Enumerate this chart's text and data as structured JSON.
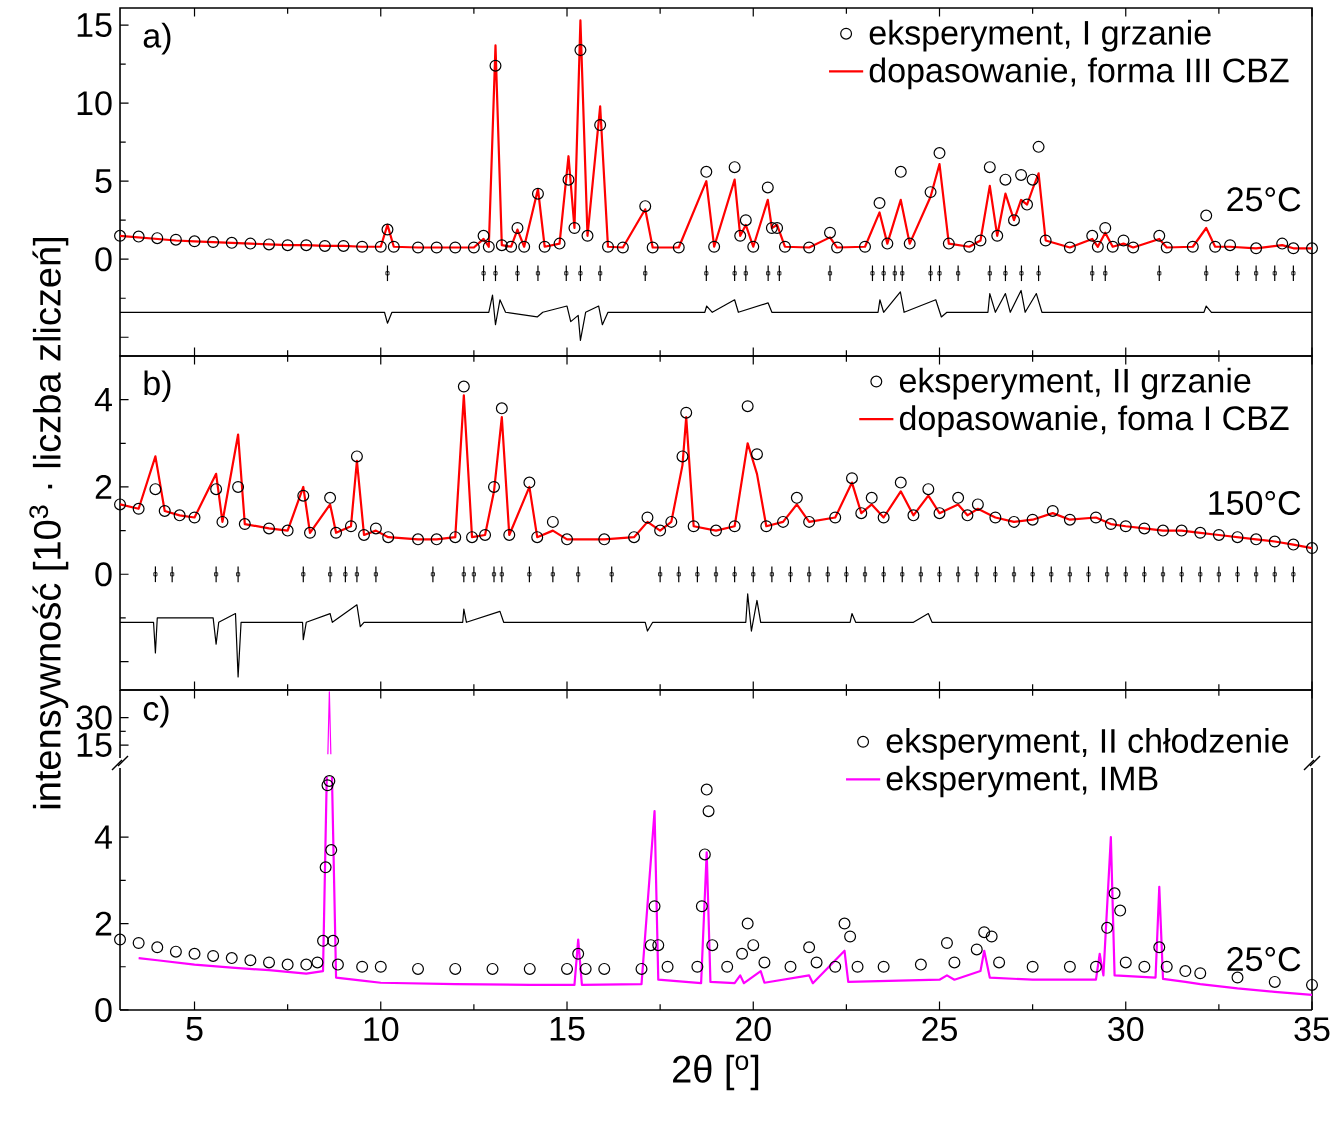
{
  "chart_data": [
    {
      "type": "line",
      "annotations": [
        "a)",
        "25°C"
      ],
      "xlim": [
        3,
        35
      ],
      "xticks": [
        5,
        10,
        15,
        20,
        25,
        30,
        35
      ],
      "ylim": [
        -6.2,
        16.1
      ],
      "yticks": [
        {
          "value": -5,
          "label": null
        },
        0,
        5,
        10,
        15
      ],
      "tick_labels": "y",
      "legend": "top right",
      "x": [
        3.0,
        3.5,
        4.0,
        4.5,
        5.0,
        5.5,
        6.0,
        6.5,
        7.0,
        7.5,
        8.0,
        8.5,
        9.0,
        9.5,
        10.0,
        10.18,
        10.35,
        11.0,
        11.5,
        12.0,
        12.5,
        12.76,
        12.9,
        13.08,
        13.25,
        13.5,
        13.67,
        13.85,
        14.22,
        14.4,
        14.8,
        15.04,
        15.2,
        15.36,
        15.55,
        15.89,
        16.1,
        16.5,
        17.1,
        17.3,
        18.0,
        18.74,
        18.95,
        19.5,
        19.65,
        19.8,
        20.0,
        20.39,
        20.5,
        20.64,
        20.85,
        21.5,
        22.06,
        22.25,
        23.0,
        23.39,
        23.6,
        23.96,
        24.2,
        24.76,
        25.0,
        25.25,
        25.8,
        26.1,
        26.35,
        26.55,
        26.77,
        27.0,
        27.19,
        27.35,
        27.5,
        27.66,
        27.85,
        28.5,
        29.1,
        29.25,
        29.45,
        29.65,
        29.94,
        30.2,
        30.9,
        31.1,
        31.8,
        32.16,
        32.4,
        32.8,
        33.5,
        34.2,
        34.5,
        35.0
      ],
      "series": [
        {
          "name": "eksperyment, I grzanie",
          "type": "scatter",
          "marker": "circle",
          "color": "#000000",
          "values": [
            1.5,
            1.45,
            1.35,
            1.25,
            1.15,
            1.1,
            1.05,
            1.0,
            0.95,
            0.9,
            0.9,
            0.85,
            0.85,
            0.8,
            0.8,
            1.9,
            0.8,
            0.75,
            0.75,
            0.75,
            0.75,
            1.5,
            0.8,
            12.4,
            0.9,
            0.8,
            2.0,
            0.8,
            4.2,
            0.8,
            1.0,
            5.1,
            2.0,
            13.4,
            1.5,
            8.6,
            0.8,
            0.75,
            3.4,
            0.75,
            0.75,
            5.6,
            0.8,
            5.9,
            1.5,
            2.5,
            0.8,
            4.6,
            2.0,
            2.0,
            0.8,
            0.75,
            1.7,
            0.75,
            0.8,
            3.6,
            1.0,
            5.6,
            1.0,
            4.3,
            6.8,
            1.0,
            0.8,
            1.2,
            5.9,
            1.5,
            5.1,
            2.5,
            5.4,
            3.5,
            5.1,
            7.2,
            1.2,
            0.75,
            1.5,
            0.8,
            2.0,
            0.8,
            1.2,
            0.75,
            1.5,
            0.75,
            0.8,
            2.8,
            0.8,
            0.9,
            0.7,
            1.0,
            0.7,
            0.7
          ]
        },
        {
          "name": "dopasowanie, forma III CBZ",
          "type": "line",
          "color": "#ff0000",
          "values": [
            1.5,
            1.4,
            1.3,
            1.2,
            1.15,
            1.1,
            1.05,
            1.0,
            0.95,
            0.9,
            0.9,
            0.85,
            0.85,
            0.8,
            0.8,
            2.2,
            0.8,
            0.75,
            0.75,
            0.75,
            0.75,
            1.3,
            0.8,
            13.7,
            0.9,
            0.8,
            1.9,
            0.8,
            4.5,
            0.8,
            1.0,
            6.6,
            2.0,
            15.3,
            1.5,
            9.8,
            0.8,
            0.75,
            3.2,
            0.75,
            0.75,
            5.0,
            0.8,
            5.1,
            1.5,
            2.2,
            0.8,
            3.8,
            2.0,
            2.2,
            0.8,
            0.75,
            1.4,
            0.75,
            0.8,
            3.0,
            1.0,
            3.8,
            1.0,
            4.0,
            6.1,
            1.0,
            0.8,
            1.2,
            4.7,
            1.5,
            4.2,
            2.5,
            3.8,
            3.5,
            4.5,
            5.5,
            1.2,
            0.75,
            1.3,
            0.8,
            1.7,
            0.8,
            1.0,
            0.75,
            1.3,
            0.75,
            0.8,
            2.0,
            0.8,
            0.8,
            0.7,
            0.9,
            0.7,
            0.7
          ]
        },
        {
          "type": "scatter",
          "marker": "square",
          "color": "#000000",
          "x": [
            10.18,
            12.76,
            13.08,
            13.67,
            14.22,
            14.98,
            15.36,
            15.89,
            17.1,
            18.74,
            19.5,
            19.8,
            20.4,
            20.7,
            22.06,
            23.2,
            23.5,
            23.8,
            24.0,
            24.76,
            25.0,
            25.5,
            26.35,
            26.77,
            27.2,
            27.66,
            29.1,
            29.45,
            30.9,
            32.16,
            33.0,
            33.5,
            34.0,
            34.5
          ],
          "values": [
            -0.9,
            -0.9,
            -0.9,
            -0.9,
            -0.9,
            -0.9,
            -0.9,
            -0.9,
            -0.9,
            -0.9,
            -0.9,
            -0.9,
            -0.9,
            -0.9,
            -0.9,
            -0.9,
            -0.9,
            -0.9,
            -0.9,
            -0.9,
            -0.9,
            -0.9,
            -0.9,
            -0.9,
            -0.9,
            -0.9,
            -0.9,
            -0.9,
            -0.9,
            -0.9,
            -0.9,
            -0.9,
            -0.9,
            -0.9
          ],
          "errors": [
            0.5,
            0.5,
            0.5,
            0.5,
            0.5,
            0.5,
            0.5,
            0.5,
            0.5,
            0.5,
            0.5,
            0.5,
            0.5,
            0.5,
            0.5,
            0.5,
            0.5,
            0.5,
            0.5,
            0.5,
            0.5,
            0.5,
            0.5,
            0.5,
            0.5,
            0.5,
            0.5,
            0.5,
            0.5,
            0.5,
            0.5,
            0.5,
            0.5,
            0.5
          ]
        },
        {
          "type": "line",
          "color": "#000000",
          "x": [
            3,
            10.1,
            10.18,
            10.3,
            12.9,
            13.0,
            13.08,
            13.2,
            13.35,
            14.2,
            14.35,
            15.0,
            15.1,
            15.3,
            15.36,
            15.5,
            15.85,
            15.95,
            16.1,
            18.7,
            18.75,
            18.9,
            19.5,
            19.6,
            20.4,
            20.5,
            23.35,
            23.4,
            23.5,
            23.95,
            24.05,
            24.9,
            25.05,
            25.2,
            26.3,
            26.35,
            26.5,
            26.77,
            26.9,
            27.19,
            27.3,
            27.6,
            27.75,
            32.1,
            32.16,
            32.3,
            35
          ],
          "values": [
            -3.4,
            -3.4,
            -4.1,
            -3.4,
            -3.4,
            -2.3,
            -4.2,
            -2.6,
            -3.4,
            -3.7,
            -3.4,
            -3.0,
            -4.0,
            -3.6,
            -5.2,
            -3.4,
            -3.0,
            -4.2,
            -3.4,
            -3.4,
            -3.0,
            -3.4,
            -2.6,
            -3.4,
            -2.8,
            -3.4,
            -3.4,
            -2.6,
            -3.4,
            -2.1,
            -3.4,
            -2.6,
            -3.7,
            -3.4,
            -3.4,
            -2.2,
            -3.4,
            -2.2,
            -3.4,
            -2.0,
            -3.4,
            -2.2,
            -3.4,
            -3.4,
            -3.0,
            -3.4,
            -3.4
          ]
        }
      ]
    },
    {
      "type": "line",
      "annotations": [
        "b)",
        "150°C"
      ],
      "ylabel": "intensywność [10$^{3}$ · liczba zliczeń]",
      "xlim": [
        3,
        35
      ],
      "xticks": [
        5,
        10,
        15,
        20,
        25,
        30,
        35
      ],
      "ylim": [
        -2.65,
        5.0
      ],
      "yticks": [
        {
          "value": -2,
          "label": null
        },
        0,
        2,
        4
      ],
      "tick_labels": "y",
      "legend": "top right",
      "x": [
        3.0,
        3.5,
        3.95,
        4.2,
        4.6,
        5.0,
        5.58,
        5.75,
        6.17,
        6.35,
        7.0,
        7.5,
        7.92,
        8.1,
        8.64,
        8.8,
        9.2,
        9.36,
        9.55,
        9.87,
        10.2,
        11.0,
        11.5,
        12.0,
        12.23,
        12.45,
        12.8,
        13.04,
        13.25,
        13.45,
        13.99,
        14.2,
        14.62,
        15.0,
        16.0,
        16.8,
        17.16,
        17.5,
        17.8,
        18.1,
        18.2,
        18.4,
        19.0,
        19.5,
        19.85,
        20.1,
        20.35,
        20.8,
        21.17,
        21.5,
        22.2,
        22.65,
        22.9,
        23.18,
        23.5,
        23.96,
        24.3,
        24.7,
        25.0,
        25.5,
        25.75,
        26.03,
        26.5,
        27.0,
        27.5,
        28.04,
        28.5,
        29.2,
        29.6,
        30.0,
        30.5,
        31.0,
        31.5,
        32.0,
        32.5,
        33.0,
        33.5,
        34.0,
        34.5,
        35.0
      ],
      "series": [
        {
          "name": "eksperyment, II grzanie",
          "type": "scatter",
          "marker": "circle",
          "color": "#000000",
          "values": [
            1.6,
            1.5,
            1.95,
            1.45,
            1.35,
            1.3,
            1.95,
            1.2,
            2.0,
            1.15,
            1.05,
            1.0,
            1.8,
            0.95,
            1.75,
            0.95,
            1.1,
            2.7,
            0.9,
            1.05,
            0.85,
            0.8,
            0.8,
            0.85,
            4.3,
            0.85,
            0.9,
            2.0,
            3.8,
            0.9,
            2.1,
            0.85,
            1.2,
            0.8,
            0.8,
            0.85,
            1.3,
            1.0,
            1.2,
            2.7,
            3.7,
            1.1,
            1.0,
            1.1,
            3.85,
            2.75,
            1.1,
            1.2,
            1.75,
            1.2,
            1.3,
            2.2,
            1.4,
            1.75,
            1.3,
            2.1,
            1.35,
            1.95,
            1.4,
            1.75,
            1.35,
            1.6,
            1.3,
            1.2,
            1.25,
            1.45,
            1.25,
            1.3,
            1.15,
            1.1,
            1.05,
            1.0,
            1.0,
            0.95,
            0.9,
            0.85,
            0.8,
            0.75,
            0.68,
            0.6
          ]
        },
        {
          "name": "dopasowanie, foma I CBZ",
          "type": "line",
          "color": "#ff0000",
          "values": [
            1.6,
            1.5,
            2.7,
            1.45,
            1.35,
            1.3,
            2.3,
            1.2,
            3.2,
            1.15,
            1.05,
            1.0,
            2.0,
            0.95,
            1.6,
            0.95,
            1.1,
            2.6,
            0.9,
            1.0,
            0.85,
            0.8,
            0.8,
            0.85,
            4.1,
            0.85,
            0.9,
            1.9,
            3.6,
            0.9,
            2.0,
            0.85,
            1.0,
            0.8,
            0.8,
            0.85,
            1.2,
            1.0,
            1.2,
            2.5,
            3.6,
            1.1,
            1.0,
            1.1,
            3.0,
            2.3,
            1.1,
            1.2,
            1.6,
            1.2,
            1.3,
            2.1,
            1.4,
            1.6,
            1.3,
            1.9,
            1.35,
            1.8,
            1.4,
            1.6,
            1.35,
            1.5,
            1.3,
            1.2,
            1.25,
            1.4,
            1.25,
            1.3,
            1.15,
            1.1,
            1.05,
            1.0,
            1.0,
            0.95,
            0.9,
            0.85,
            0.8,
            0.75,
            0.68,
            0.6
          ]
        },
        {
          "type": "scatter",
          "marker": "square",
          "color": "#000000",
          "x": [
            3.95,
            4.4,
            5.58,
            6.17,
            7.92,
            8.64,
            9.05,
            9.36,
            9.87,
            11.4,
            12.23,
            12.5,
            13.04,
            13.25,
            13.99,
            14.62,
            15.3,
            16.2,
            17.5,
            18,
            18.5,
            19,
            19.5,
            20,
            20.5,
            21,
            21.5,
            22,
            22.5,
            23,
            23.5,
            24,
            24.5,
            25,
            25.5,
            26,
            26.5,
            27,
            27.5,
            28,
            28.5,
            29,
            29.5,
            30,
            30.5,
            31,
            31.5,
            32,
            32.5,
            33,
            33.5,
            34,
            34.5
          ],
          "values": [
            0,
            0,
            0,
            0,
            0,
            0,
            0,
            0,
            0,
            0,
            0,
            0,
            0,
            0,
            0,
            0,
            0,
            0,
            0,
            0,
            0,
            0,
            0,
            0,
            0,
            0,
            0,
            0,
            0,
            0,
            0,
            0,
            0,
            0,
            0,
            0,
            0,
            0,
            0,
            0,
            0,
            0,
            0,
            0,
            0,
            0,
            0,
            0,
            0,
            0,
            0,
            0,
            0
          ],
          "errors": [
            0.18,
            0.18,
            0.18,
            0.18,
            0.18,
            0.18,
            0.18,
            0.18,
            0.18,
            0.18,
            0.18,
            0.18,
            0.18,
            0.18,
            0.18,
            0.18,
            0.18,
            0.18,
            0.18,
            0.18,
            0.18,
            0.18,
            0.18,
            0.18,
            0.18,
            0.18,
            0.18,
            0.18,
            0.18,
            0.18,
            0.18,
            0.18,
            0.18,
            0.18,
            0.18,
            0.18,
            0.18,
            0.18,
            0.18,
            0.18,
            0.18,
            0.18,
            0.18,
            0.18,
            0.18,
            0.18,
            0.18,
            0.18,
            0.18,
            0.18,
            0.18,
            0.18,
            0.18
          ]
        },
        {
          "type": "line",
          "color": "#000000",
          "x": [
            3,
            3.9,
            3.95,
            4.0,
            5.5,
            5.58,
            5.65,
            6.1,
            6.17,
            6.25,
            7.9,
            7.92,
            8.0,
            8.64,
            8.7,
            9.36,
            9.45,
            9.55,
            12.2,
            12.23,
            12.3,
            13.2,
            13.3,
            17.1,
            17.16,
            17.3,
            19.8,
            19.85,
            19.95,
            20.1,
            20.2,
            21.0,
            22.6,
            22.65,
            22.75,
            24.3,
            24.7,
            24.8,
            35
          ],
          "values": [
            -1.1,
            -1.1,
            -1.8,
            -1.0,
            -1.0,
            -1.6,
            -1.1,
            -0.9,
            -2.35,
            -1.1,
            -1.1,
            -1.5,
            -1.1,
            -0.9,
            -1.1,
            -0.7,
            -1.2,
            -1.1,
            -1.1,
            -0.8,
            -1.1,
            -0.85,
            -1.1,
            -1.1,
            -1.3,
            -1.1,
            -1.1,
            -0.45,
            -1.3,
            -0.6,
            -1.1,
            -1.1,
            -1.1,
            -0.9,
            -1.1,
            -1.1,
            -0.9,
            -1.1,
            -1.1
          ]
        }
      ]
    },
    {
      "type": "line",
      "annotations": [
        "c)"
      ],
      "xlim": [
        3,
        35
      ],
      "xticks": [
        5,
        10,
        15,
        20,
        25,
        30,
        35
      ],
      "ylim": [
        8,
        45
      ],
      "yticks": [
        15,
        30
      ],
      "tick_labels": "y",
      "series": [
        {
          "type": "line",
          "color": "#ff00ff",
          "x": [
            8.58,
            8.62,
            8.66
          ],
          "values": [
            10,
            44,
            10
          ]
        }
      ]
    },
    {
      "type": "line",
      "annotations": [
        "25°C"
      ],
      "xlabel": "2θ [$^{o}$]",
      "xlim": [
        3,
        35
      ],
      "xticks": [
        5,
        10,
        15,
        20,
        25,
        30,
        35
      ],
      "ylim": [
        0,
        5.6
      ],
      "yticks": [
        0,
        2,
        4
      ],
      "legend": "top right",
      "series": [
        {
          "name": "eksperyment, II chłodzenie",
          "type": "scatter",
          "marker": "circle",
          "color": "#000000",
          "x": [
            3.0,
            3.5,
            4,
            4.5,
            5,
            5.5,
            6,
            6.5,
            7,
            7.5,
            8,
            8.3,
            8.45,
            8.52,
            8.57,
            8.62,
            8.67,
            8.72,
            8.85,
            9.5,
            10,
            11,
            12,
            13,
            14,
            15,
            15.3,
            15.5,
            16,
            17,
            17.25,
            17.35,
            17.45,
            17.7,
            18.5,
            18.62,
            18.7,
            18.75,
            18.8,
            18.9,
            19.3,
            19.7,
            19.85,
            20.0,
            20.3,
            21,
            21.5,
            21.7,
            22.2,
            22.45,
            22.6,
            22.8,
            23.5,
            24.5,
            25.2,
            25.4,
            26.0,
            26.2,
            26.4,
            26.6,
            27.5,
            28.5,
            29.2,
            29.5,
            29.7,
            29.85,
            30.0,
            30.5,
            30.9,
            31.1,
            31.6,
            32,
            33,
            34,
            35
          ],
          "values": [
            1.63,
            1.55,
            1.45,
            1.35,
            1.3,
            1.25,
            1.2,
            1.15,
            1.1,
            1.05,
            1.05,
            1.1,
            1.6,
            3.3,
            5.2,
            5.3,
            3.7,
            1.6,
            1.05,
            1.0,
            1.0,
            0.95,
            0.95,
            0.95,
            0.95,
            0.95,
            1.3,
            0.95,
            0.95,
            0.95,
            1.5,
            2.4,
            1.5,
            1.0,
            1.0,
            2.4,
            3.6,
            5.1,
            4.6,
            1.5,
            1.0,
            1.3,
            2.0,
            1.5,
            1.1,
            1.0,
            1.45,
            1.1,
            1.0,
            2.0,
            1.7,
            1.0,
            1.0,
            1.05,
            1.55,
            1.1,
            1.4,
            1.8,
            1.7,
            1.1,
            1.0,
            1.0,
            1.0,
            1.9,
            2.7,
            2.3,
            1.1,
            1.0,
            1.45,
            1.0,
            0.9,
            0.85,
            0.75,
            0.65,
            0.58
          ]
        },
        {
          "name": "eksperyment, IMB",
          "type": "line",
          "color": "#ff00ff",
          "x": [
            3.5,
            4,
            5,
            6,
            7,
            8,
            8.45,
            8.55,
            8.62,
            8.69,
            8.8,
            9.5,
            10,
            12,
            14,
            15.2,
            15.3,
            15.4,
            17,
            17.35,
            17.45,
            18.6,
            18.75,
            18.85,
            19.5,
            19.65,
            19.75,
            20.2,
            20.3,
            21.5,
            21.6,
            22.45,
            22.55,
            25,
            25.2,
            25.4,
            26.1,
            26.2,
            26.35,
            27.5,
            29.2,
            29.3,
            29.4,
            29.6,
            29.7,
            30.8,
            30.9,
            31.0,
            31.6,
            32,
            33,
            34,
            35
          ],
          "values": [
            1.2,
            1.15,
            1.05,
            0.98,
            0.92,
            0.84,
            0.9,
            5.4,
            null,
            5.4,
            0.75,
            0.68,
            0.63,
            0.6,
            0.58,
            0.58,
            1.63,
            0.58,
            0.6,
            4.6,
            0.7,
            0.62,
            3.65,
            0.65,
            0.62,
            0.8,
            0.62,
            0.9,
            0.63,
            0.8,
            0.62,
            1.37,
            0.65,
            0.7,
            0.8,
            0.7,
            0.9,
            1.37,
            0.75,
            0.7,
            0.7,
            1.3,
            0.8,
            4.0,
            0.8,
            0.75,
            2.85,
            0.72,
            0.65,
            0.6,
            0.5,
            0.42,
            0.35
          ]
        }
      ]
    }
  ]
}
